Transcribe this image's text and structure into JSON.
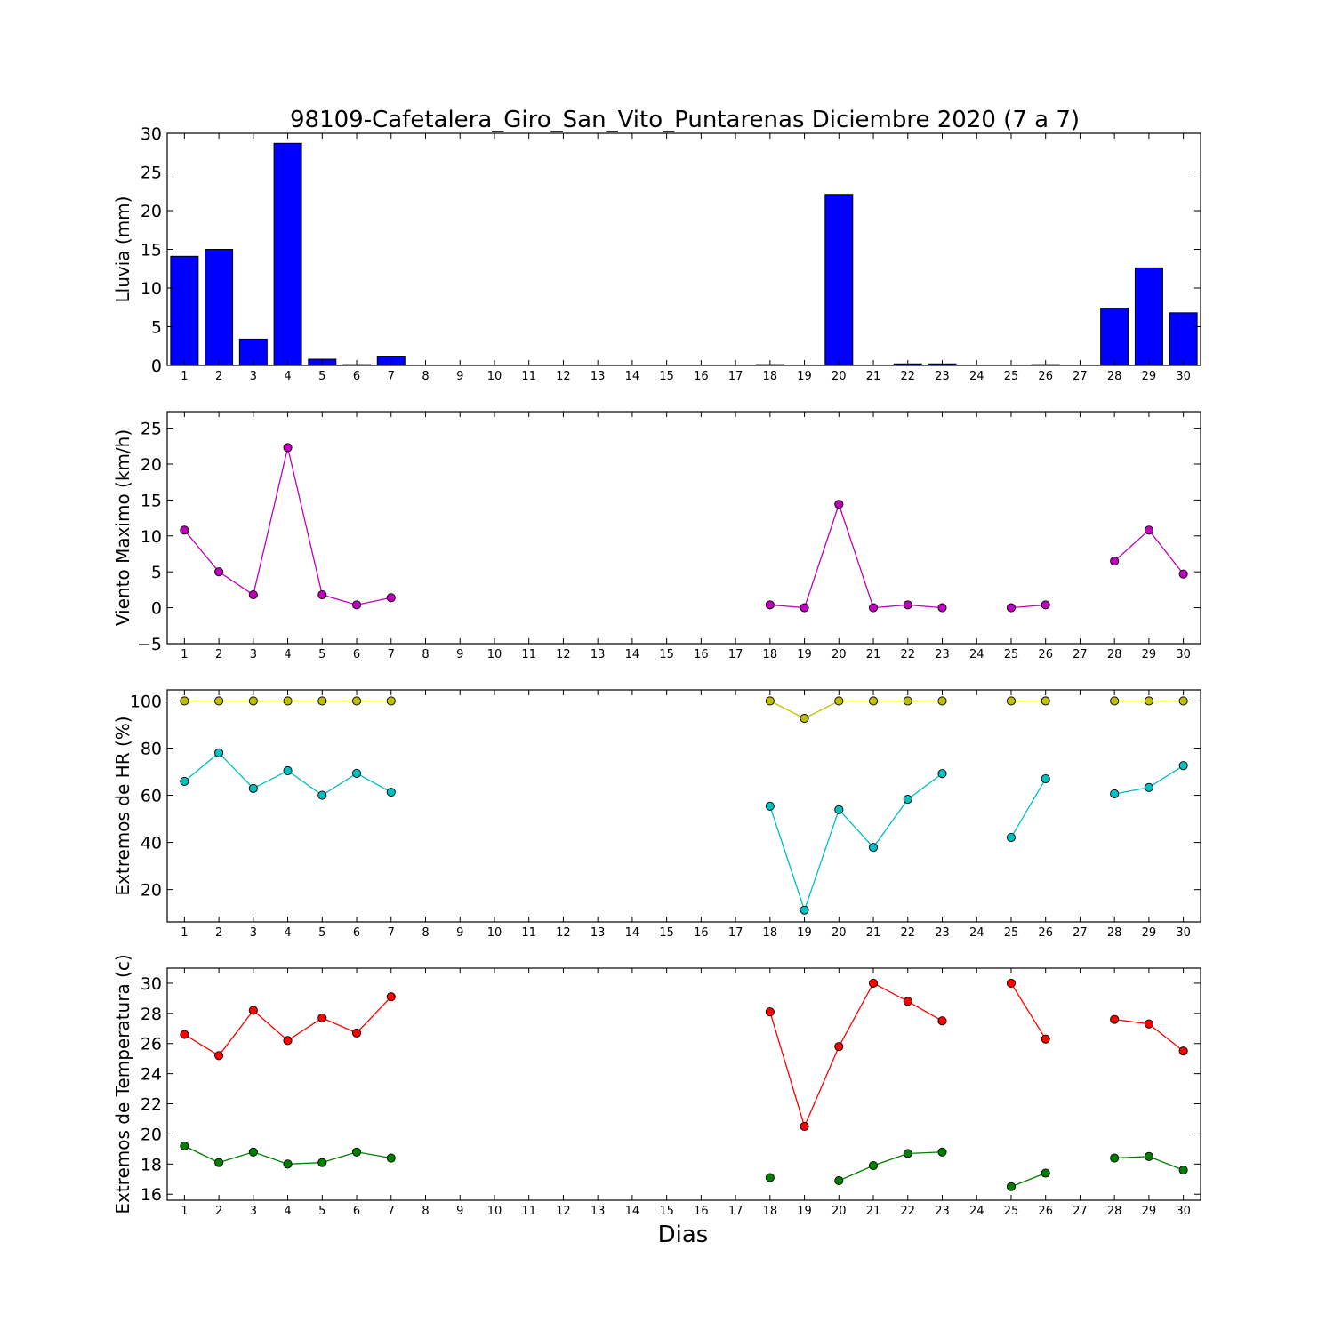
{
  "title": "98109-Cafetalera_Giro_San_Vito_Puntarenas Diciembre 2020  (7 a 7)",
  "xlabel": "Dias",
  "days": [
    1,
    2,
    3,
    4,
    5,
    6,
    7,
    8,
    9,
    10,
    11,
    12,
    13,
    14,
    15,
    16,
    17,
    18,
    19,
    20,
    21,
    22,
    23,
    24,
    25,
    26,
    27,
    28,
    29,
    30
  ],
  "chart_data": [
    {
      "type": "bar",
      "ylabel": "Lluvia (mm)",
      "ylim": [
        0,
        30
      ],
      "yticks": [
        0,
        5,
        10,
        15,
        20,
        25,
        30
      ],
      "xlim": [
        0.5,
        30.5
      ],
      "series": [
        {
          "color": "#0000ff",
          "x": [
            1,
            2,
            3,
            4,
            5,
            6,
            7,
            8,
            9,
            10,
            11,
            12,
            13,
            14,
            15,
            16,
            17,
            18,
            19,
            20,
            21,
            22,
            23,
            24,
            25,
            26,
            27,
            28,
            29,
            30
          ],
          "values": [
            14.1,
            15.0,
            3.4,
            28.7,
            0.8,
            0.1,
            1.2,
            0,
            0,
            0,
            0,
            0,
            0,
            0,
            0,
            0,
            0,
            0.1,
            0,
            22.1,
            0,
            0.2,
            0.2,
            0,
            0,
            0.1,
            0,
            7.4,
            12.6,
            6.8
          ]
        }
      ]
    },
    {
      "type": "line",
      "ylabel": "Viento Maximo (km/h)",
      "ylim": [
        -5,
        27.3
      ],
      "yticks": [
        -5,
        0,
        5,
        10,
        15,
        20,
        25
      ],
      "xlim": [
        0.5,
        30.5
      ],
      "series": [
        {
          "color": "#bf00bf",
          "x": [
            1,
            2,
            3,
            4,
            5,
            6,
            7,
            8,
            9,
            10,
            11,
            12,
            13,
            14,
            15,
            16,
            17,
            18,
            19,
            20,
            21,
            22,
            23,
            24,
            25,
            26,
            27,
            28,
            29,
            30
          ],
          "values": [
            10.8,
            5.0,
            1.8,
            22.3,
            1.8,
            0.4,
            1.4,
            null,
            null,
            null,
            null,
            null,
            null,
            null,
            null,
            null,
            null,
            0.4,
            0.0,
            14.4,
            0.0,
            0.4,
            0.0,
            null,
            0.0,
            0.4,
            null,
            6.5,
            10.8,
            4.7
          ]
        }
      ]
    },
    {
      "type": "line",
      "ylabel": "Extremos de HR (%)",
      "ylim": [
        6.3,
        104.7
      ],
      "yticks": [
        20,
        40,
        60,
        80,
        100
      ],
      "xlim": [
        0.5,
        30.5
      ],
      "series": [
        {
          "color": "#bfbf00",
          "x": [
            1,
            2,
            3,
            4,
            5,
            6,
            7,
            8,
            9,
            10,
            11,
            12,
            13,
            14,
            15,
            16,
            17,
            18,
            19,
            20,
            21,
            22,
            23,
            24,
            25,
            26,
            27,
            28,
            29,
            30
          ],
          "values": [
            100,
            100,
            100,
            100,
            100,
            100,
            100,
            null,
            null,
            null,
            null,
            null,
            null,
            null,
            null,
            null,
            null,
            100,
            92.6,
            100,
            100,
            100,
            100,
            null,
            100,
            100,
            null,
            100,
            100,
            100
          ]
        },
        {
          "color": "#00bfbf",
          "x": [
            1,
            2,
            3,
            4,
            5,
            6,
            7,
            8,
            9,
            10,
            11,
            12,
            13,
            14,
            15,
            16,
            17,
            18,
            19,
            20,
            21,
            22,
            23,
            24,
            25,
            26,
            27,
            28,
            29,
            30
          ],
          "values": [
            65.9,
            78.0,
            62.9,
            70.4,
            60.0,
            69.3,
            61.3,
            null,
            null,
            null,
            null,
            null,
            null,
            null,
            null,
            null,
            null,
            55.4,
            11.3,
            53.9,
            37.9,
            58.3,
            69.2,
            null,
            42.1,
            67.0,
            null,
            60.6,
            63.3,
            72.6
          ]
        }
      ]
    },
    {
      "type": "line",
      "ylabel": "Extremos de Temperatura (c)",
      "ylim": [
        15.6,
        31
      ],
      "yticks": [
        16,
        18,
        20,
        22,
        24,
        26,
        28,
        30
      ],
      "xlim": [
        0.5,
        30.5
      ],
      "series": [
        {
          "color": "#ff0000",
          "x": [
            1,
            2,
            3,
            4,
            5,
            6,
            7,
            8,
            9,
            10,
            11,
            12,
            13,
            14,
            15,
            16,
            17,
            18,
            19,
            20,
            21,
            22,
            23,
            24,
            25,
            26,
            27,
            28,
            29,
            30
          ],
          "values": [
            26.6,
            25.2,
            28.2,
            26.2,
            27.7,
            26.7,
            29.1,
            null,
            null,
            null,
            null,
            null,
            null,
            null,
            null,
            null,
            null,
            28.1,
            20.5,
            25.8,
            30.0,
            28.8,
            27.5,
            null,
            30.0,
            26.3,
            null,
            27.6,
            27.3,
            25.5
          ]
        },
        {
          "color": "#007f00",
          "x": [
            1,
            2,
            3,
            4,
            5,
            6,
            7,
            8,
            9,
            10,
            11,
            12,
            13,
            14,
            15,
            16,
            17,
            18,
            19,
            20,
            21,
            22,
            23,
            24,
            25,
            26,
            27,
            28,
            29,
            30
          ],
          "values": [
            19.2,
            18.1,
            18.8,
            18.0,
            18.1,
            18.8,
            18.4,
            null,
            null,
            null,
            null,
            null,
            null,
            null,
            null,
            null,
            null,
            17.1,
            null,
            16.9,
            17.9,
            18.7,
            18.8,
            null,
            16.5,
            17.4,
            null,
            18.4,
            18.5,
            17.6
          ]
        }
      ]
    }
  ]
}
